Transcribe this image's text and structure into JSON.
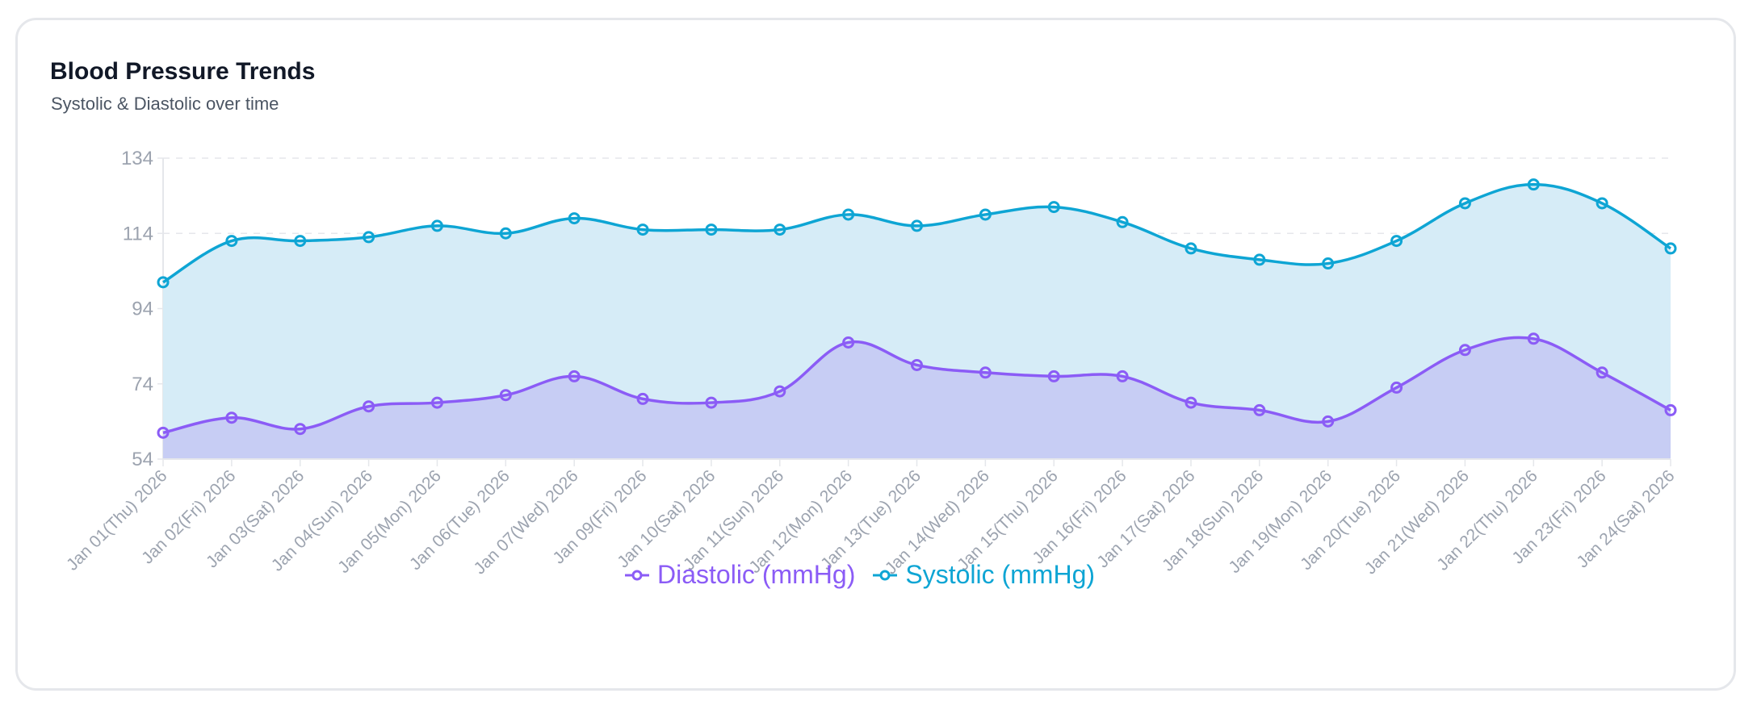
{
  "card": {
    "title": "Blood Pressure Trends",
    "subtitle": "Systolic & Diastolic over time"
  },
  "legend": [
    {
      "label": "Diastolic (mmHg)",
      "color": "#8b5cf6",
      "icon": "line-circle-marker-icon"
    },
    {
      "label": "Systolic (mmHg)",
      "color": "#0ea5d4",
      "icon": "line-circle-marker-icon"
    }
  ],
  "colors": {
    "systolic_line": "#0ea5d4",
    "systolic_fill": "#d6ecf7",
    "diastolic_line": "#8b5cf6",
    "diastolic_fill": "#c7cdf4",
    "grid": "#e5e7eb",
    "axis_text": "#9ca3af"
  },
  "chart_data": {
    "type": "area",
    "title": "Blood Pressure Trends",
    "subtitle": "Systolic & Diastolic over time",
    "xlabel": "",
    "ylabel": "",
    "ylim": [
      54,
      134
    ],
    "yticks": [
      54,
      74,
      94,
      114,
      134
    ],
    "grid": true,
    "legend_position": "bottom",
    "categories": [
      "Jan 01(Thu) 2026",
      "Jan 02(Fri) 2026",
      "Jan 03(Sat) 2026",
      "Jan 04(Sun) 2026",
      "Jan 05(Mon) 2026",
      "Jan 06(Tue) 2026",
      "Jan 07(Wed) 2026",
      "Jan 09(Fri) 2026",
      "Jan 10(Sat) 2026",
      "Jan 11(Sun) 2026",
      "Jan 12(Mon) 2026",
      "Jan 13(Tue) 2026",
      "Jan 14(Wed) 2026",
      "Jan 15(Thu) 2026",
      "Jan 16(Fri) 2026",
      "Jan 17(Sat) 2026",
      "Jan 18(Sun) 2026",
      "Jan 19(Mon) 2026",
      "Jan 20(Tue) 2026",
      "Jan 21(Wed) 2026",
      "Jan 22(Thu) 2026",
      "Jan 23(Fri) 2026",
      "Jan 24(Sat) 2026"
    ],
    "series": [
      {
        "name": "Systolic (mmHg)",
        "values": [
          101,
          112,
          112,
          113,
          116,
          114,
          118,
          115,
          115,
          115,
          119,
          116,
          119,
          121,
          117,
          110,
          107,
          106,
          112,
          122,
          127,
          122,
          110
        ]
      },
      {
        "name": "Diastolic (mmHg)",
        "values": [
          61,
          65,
          62,
          68,
          69,
          71,
          76,
          70,
          69,
          72,
          85,
          79,
          77,
          76,
          76,
          69,
          67,
          64,
          73,
          83,
          86,
          77,
          67
        ]
      }
    ]
  }
}
